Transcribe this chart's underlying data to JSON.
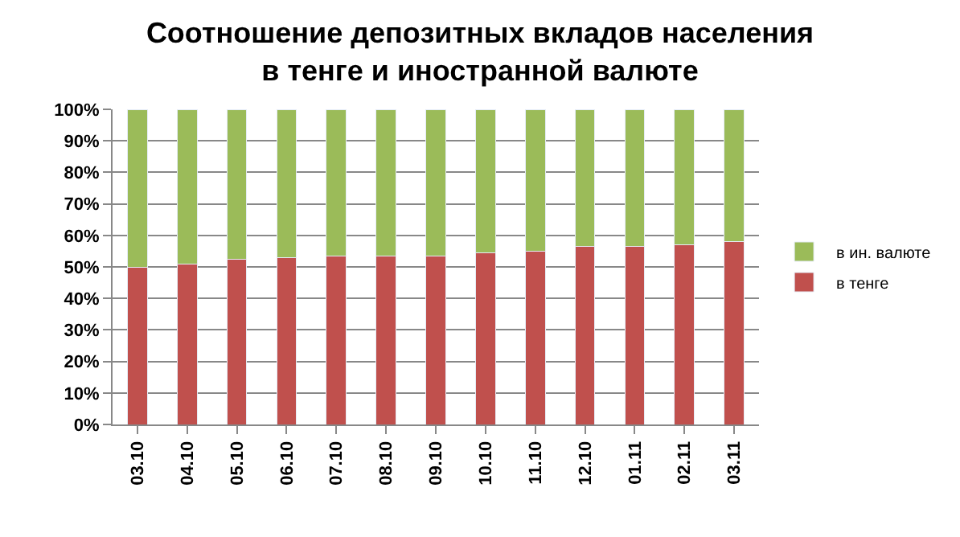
{
  "chart_data": {
    "type": "bar",
    "stacked": true,
    "title": "Соотношение депозитных вкладов населения в тенге и иностранной валюте",
    "categories": [
      "03.10",
      "04.10",
      "05.10",
      "06.10",
      "07.10",
      "08.10",
      "09.10",
      "10.10",
      "11.10",
      "12.10",
      "01.11",
      "02.11",
      "03.11"
    ],
    "series": [
      {
        "name": "в тенге",
        "color": "#c0504d",
        "values": [
          50,
          51,
          52.5,
          53,
          53.5,
          53.5,
          53.5,
          54.5,
          55,
          56.5,
          56.5,
          57,
          58
        ]
      },
      {
        "name": "в ин. валюте",
        "color": "#9bbb59",
        "values": [
          50,
          49,
          47.5,
          47,
          46.5,
          46.5,
          46.5,
          45.5,
          45,
          43.5,
          43.5,
          43,
          42
        ]
      }
    ],
    "ylim": [
      0,
      100
    ],
    "yticks": [
      {
        "value": 0,
        "label": "0%"
      },
      {
        "value": 10,
        "label": "10%"
      },
      {
        "value": 20,
        "label": "20%"
      },
      {
        "value": 30,
        "label": "30%"
      },
      {
        "value": 40,
        "label": "40%"
      },
      {
        "value": 50,
        "label": "50%"
      },
      {
        "value": 60,
        "label": "60%"
      },
      {
        "value": 70,
        "label": "70%"
      },
      {
        "value": 80,
        "label": "80%"
      },
      {
        "value": 90,
        "label": "90%"
      },
      {
        "value": 100,
        "label": "100%"
      }
    ],
    "grid": "y",
    "legend": "right"
  }
}
